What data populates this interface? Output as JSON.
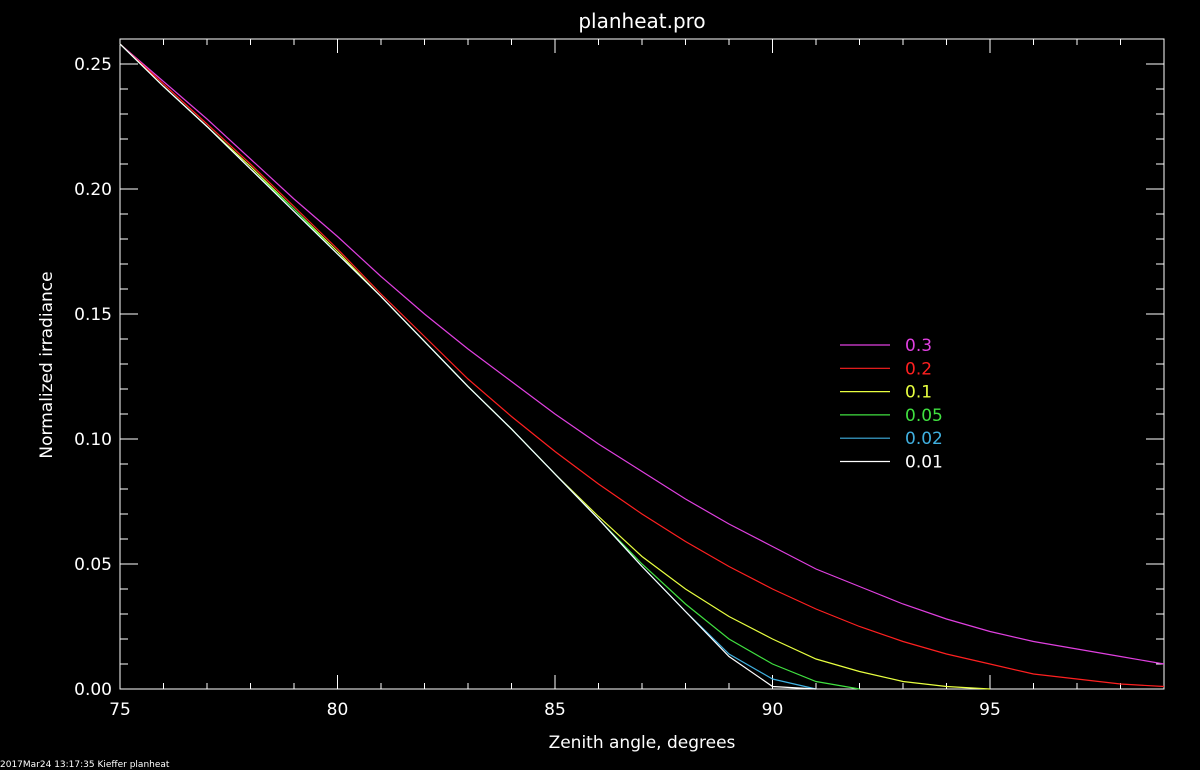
{
  "footer_text": "2017Mar24 13:17:35 Kieffer planheat",
  "chart_data": {
    "type": "line",
    "title": "planheat.pro",
    "xlabel": "Zenith angle, degrees",
    "ylabel": "Normalized irradiance",
    "xlim": [
      75,
      99
    ],
    "ylim": [
      0,
      0.26
    ],
    "xticks": [
      75,
      80,
      85,
      90,
      95
    ],
    "xtick_labels": [
      "75",
      "80",
      "85",
      "90",
      "95"
    ],
    "yticks": [
      0,
      0.05,
      0.1,
      0.15,
      0.2,
      0.25
    ],
    "ytick_labels": [
      "0.00",
      "0.05",
      "0.10",
      "0.15",
      "0.20",
      "0.25"
    ],
    "grid": false,
    "legend_position": "right-center",
    "series": [
      {
        "name": "0.3",
        "color": "#e040e0",
        "x": [
          75,
          76,
          77,
          78,
          79,
          80,
          81,
          82,
          83,
          84,
          85,
          86,
          87,
          88,
          89,
          90,
          91,
          92,
          93,
          94,
          95,
          96,
          97,
          98,
          99
        ],
        "y": [
          0.258,
          0.243,
          0.228,
          0.212,
          0.196,
          0.181,
          0.165,
          0.15,
          0.136,
          0.123,
          0.11,
          0.098,
          0.087,
          0.076,
          0.066,
          0.057,
          0.048,
          0.041,
          0.034,
          0.028,
          0.023,
          0.019,
          0.016,
          0.013,
          0.01
        ]
      },
      {
        "name": "0.2",
        "color": "#ff2020",
        "x": [
          75,
          76,
          77,
          78,
          79,
          80,
          81,
          82,
          83,
          84,
          85,
          86,
          87,
          88,
          89,
          90,
          91,
          92,
          93,
          94,
          95,
          96,
          97,
          98,
          99
        ],
        "y": [
          0.258,
          0.242,
          0.226,
          0.21,
          0.193,
          0.176,
          0.158,
          0.141,
          0.124,
          0.109,
          0.095,
          0.082,
          0.07,
          0.059,
          0.049,
          0.04,
          0.032,
          0.025,
          0.019,
          0.014,
          0.01,
          0.006,
          0.004,
          0.002,
          0.001
        ]
      },
      {
        "name": "0.1",
        "color": "#e8ff40",
        "x": [
          75,
          76,
          77,
          78,
          79,
          80,
          81,
          82,
          83,
          84,
          85,
          86,
          87,
          88,
          89,
          90,
          91,
          92,
          93,
          94,
          95
        ],
        "y": [
          0.258,
          0.241,
          0.225,
          0.209,
          0.192,
          0.175,
          0.157,
          0.139,
          0.121,
          0.104,
          0.086,
          0.069,
          0.053,
          0.04,
          0.029,
          0.02,
          0.012,
          0.007,
          0.003,
          0.001,
          0.0
        ]
      },
      {
        "name": "0.05",
        "color": "#40e040",
        "x": [
          75,
          76,
          77,
          78,
          79,
          80,
          81,
          82,
          83,
          84,
          85,
          86,
          87,
          88,
          89,
          90,
          91,
          92
        ],
        "y": [
          0.258,
          0.241,
          0.225,
          0.208,
          0.192,
          0.174,
          0.157,
          0.139,
          0.121,
          0.104,
          0.086,
          0.068,
          0.05,
          0.034,
          0.02,
          0.01,
          0.003,
          0.0
        ]
      },
      {
        "name": "0.02",
        "color": "#40b0e0",
        "x": [
          75,
          76,
          77,
          78,
          79,
          80,
          81,
          82,
          83,
          84,
          85,
          86,
          87,
          88,
          89,
          90,
          91
        ],
        "y": [
          0.258,
          0.241,
          0.225,
          0.208,
          0.191,
          0.174,
          0.157,
          0.139,
          0.121,
          0.104,
          0.086,
          0.068,
          0.049,
          0.031,
          0.014,
          0.004,
          0.0
        ]
      },
      {
        "name": "0.01",
        "color": "#ffffff",
        "x": [
          75,
          76,
          77,
          78,
          79,
          80,
          81,
          82,
          83,
          84,
          85,
          86,
          87,
          88,
          89,
          90,
          91
        ],
        "y": [
          0.258,
          0.241,
          0.225,
          0.208,
          0.191,
          0.174,
          0.157,
          0.139,
          0.121,
          0.104,
          0.086,
          0.068,
          0.049,
          0.031,
          0.013,
          0.001,
          0.0
        ]
      }
    ]
  }
}
